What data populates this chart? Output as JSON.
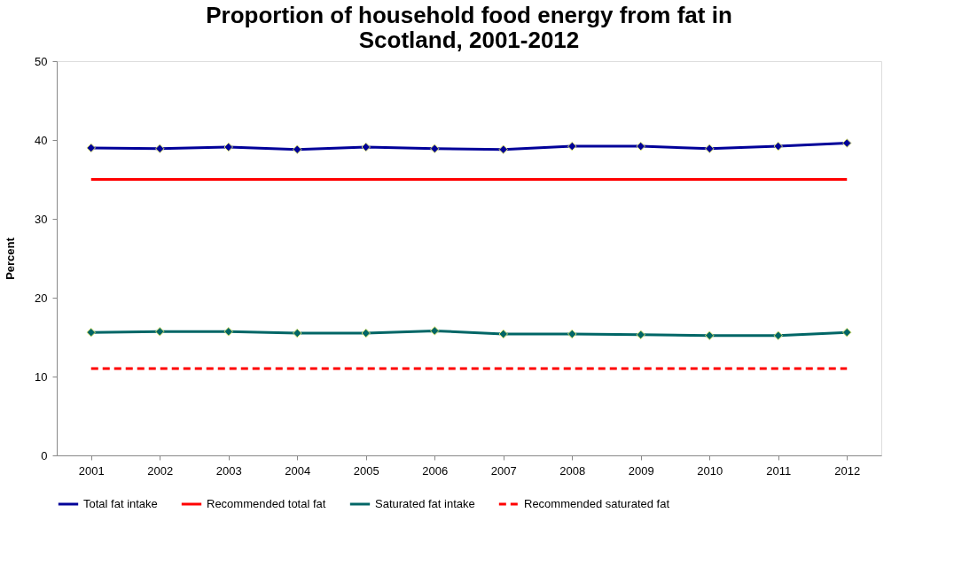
{
  "chart_data": {
    "type": "line",
    "title": "Proportion of household food energy from fat in Scotland, 2001-2012",
    "ylabel": "Percent",
    "categories": [
      "2001",
      "2002",
      "2003",
      "2004",
      "2005",
      "2006",
      "2007",
      "2008",
      "2009",
      "2010",
      "2011",
      "2012"
    ],
    "ylim": [
      0,
      50
    ],
    "yticks": [
      0,
      10,
      20,
      30,
      40,
      50
    ],
    "grid": false,
    "legend": "bottom",
    "series": [
      {
        "name": "Total fat intake",
        "color": "#000099",
        "marker": "diamond",
        "line_style": "solid",
        "values": [
          39.0,
          38.9,
          39.1,
          38.8,
          39.1,
          38.9,
          38.8,
          39.2,
          39.2,
          38.9,
          39.2,
          39.6
        ]
      },
      {
        "name": "Recommended total fat",
        "color": "#ff0000",
        "marker": "none",
        "line_style": "solid",
        "values": [
          35,
          35,
          35,
          35,
          35,
          35,
          35,
          35,
          35,
          35,
          35,
          35
        ]
      },
      {
        "name": "Saturated fat intake",
        "color": "#006666",
        "marker": "diamond",
        "line_style": "solid",
        "values": [
          15.6,
          15.7,
          15.7,
          15.5,
          15.5,
          15.8,
          15.4,
          15.4,
          15.3,
          15.2,
          15.2,
          15.6
        ]
      },
      {
        "name": "Recommended saturated fat",
        "color": "#ff0000",
        "marker": "none",
        "line_style": "dashed",
        "values": [
          11,
          11,
          11,
          11,
          11,
          11,
          11,
          11,
          11,
          11,
          11,
          11
        ]
      }
    ]
  }
}
